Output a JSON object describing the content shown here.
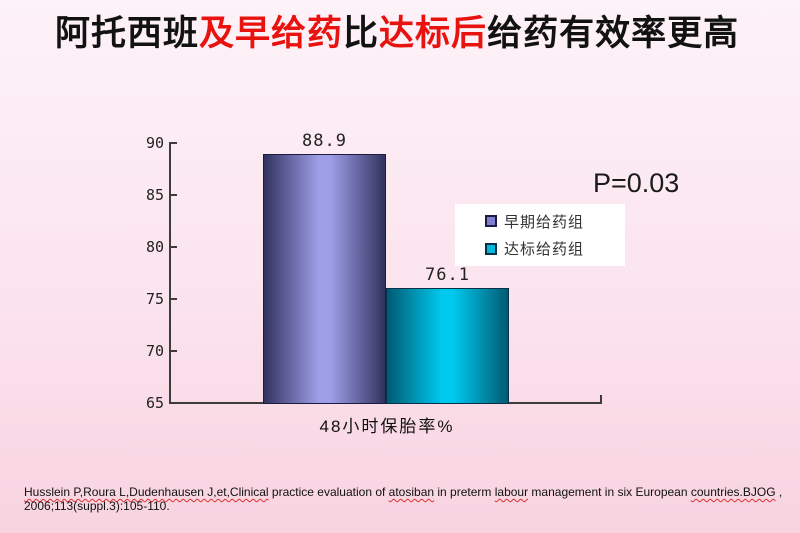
{
  "title": {
    "segments": [
      {
        "text": "阿托西班",
        "color": "#121212",
        "name": "title-segment-black"
      },
      {
        "text": "及早给药",
        "color": "#e8130f",
        "name": "title-segment-red"
      },
      {
        "text": "比",
        "color": "#121212",
        "name": "title-segment-black"
      },
      {
        "text": "达标后",
        "color": "#e8130f",
        "name": "title-segment-red"
      },
      {
        "text": "给药有效率更高",
        "color": "#121212",
        "name": "title-segment-black"
      }
    ]
  },
  "chart_data": {
    "type": "bar",
    "title": "",
    "categories": [
      "48小时保胎率%"
    ],
    "series": [
      {
        "name": "早期给药组",
        "values": [
          88.9
        ],
        "fill_center": "#9e9ee8",
        "fill_edge": "#32325f",
        "border": "#1c1c40",
        "legend_fill": "#7d7dd2"
      },
      {
        "name": "达标给药组",
        "values": [
          76.1
        ],
        "fill_center": "#00c8ee",
        "fill_edge": "#005a72",
        "border": "#0a3048",
        "legend_fill": "#00b8dc"
      }
    ],
    "xlabel": "48小时保胎率%",
    "ylabel": "",
    "ylim": [
      65,
      90
    ],
    "yticks": [
      65,
      70,
      75,
      80,
      85,
      90
    ],
    "grid": false,
    "legend_position": "right",
    "annotation": "P=0.03"
  },
  "citation": {
    "segments": [
      {
        "text": "Husslein P,Roura L,Dudenhausen J,et,Clinical",
        "squiggle": true
      },
      {
        "text": " practice evaluation of ",
        "squiggle": false
      },
      {
        "text": "atosiban",
        "squiggle": true
      },
      {
        "text": " in preterm ",
        "squiggle": false
      },
      {
        "text": "labour",
        "squiggle": true
      },
      {
        "text": " management in six European ",
        "squiggle": false
      },
      {
        "text": "countries.BJOG",
        "squiggle": true
      },
      {
        "text": " ,",
        "squiggle": false,
        "br_after": true
      },
      {
        "text": "2006;113(suppl.3):105-110.",
        "squiggle": false
      }
    ]
  }
}
